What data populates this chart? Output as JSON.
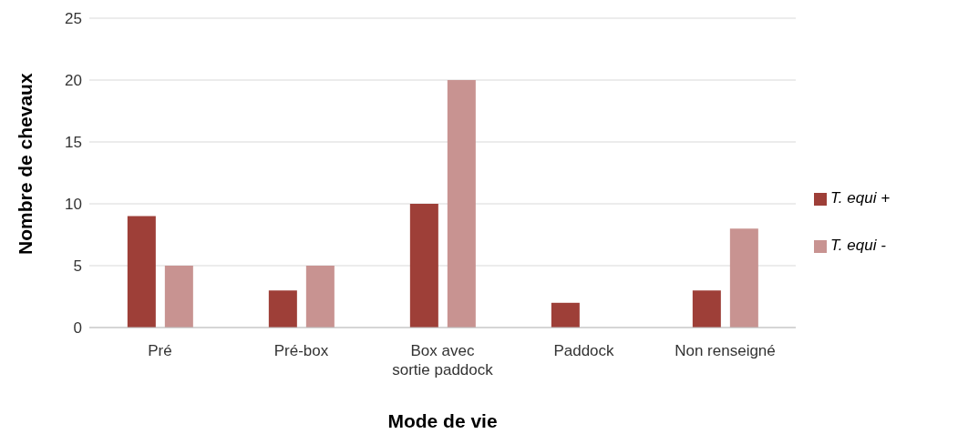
{
  "chart_data": {
    "type": "bar",
    "xlabel": "Mode de vie",
    "ylabel": "Nombre de chevaux",
    "categories": [
      "Pré",
      "Pré-box",
      "Box avec sortie paddock",
      "Paddock",
      "Non renseigné"
    ],
    "series": [
      {
        "name": "T. equi +",
        "color": "#9e3f38",
        "values": [
          9,
          3,
          10,
          2,
          3
        ]
      },
      {
        "name": "T. equi -",
        "color": "#c89391",
        "values": [
          5,
          5,
          20,
          0,
          8
        ]
      }
    ],
    "ylim": [
      0,
      25
    ],
    "yticks": [
      0,
      5,
      10,
      15,
      20,
      25
    ],
    "grid": "y",
    "legend": "right"
  }
}
